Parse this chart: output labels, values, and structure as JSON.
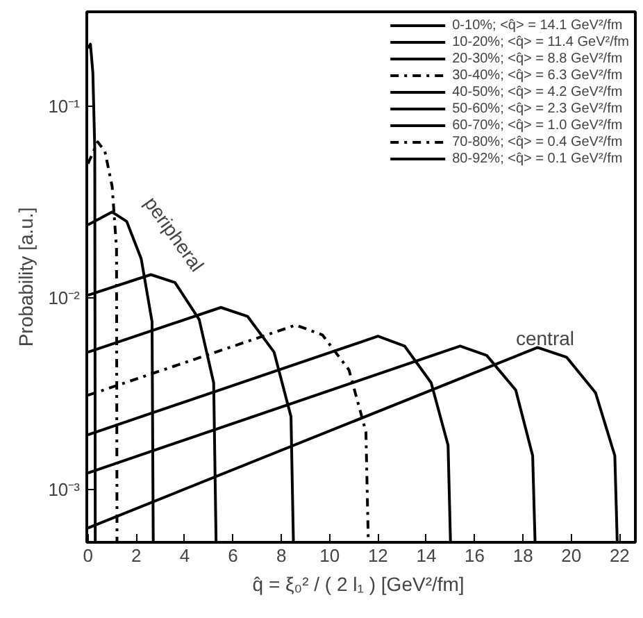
{
  "chart_data": {
    "type": "line",
    "xlabel": "q̂ = ξ₀² / ( 2 l₁ )  [GeV²/fm]",
    "ylabel": "Probability [a.u.]",
    "log": "y",
    "xlim": [
      -0.05,
      22.65
    ],
    "ylim": [
      0.00053,
      0.31
    ],
    "xticks": [
      0,
      2,
      4,
      6,
      8,
      10,
      12,
      14,
      16,
      18,
      20,
      22
    ],
    "yticks": [
      {
        "value": 0.001,
        "label": "10⁻³"
      },
      {
        "value": 0.01,
        "label": "10⁻²"
      },
      {
        "value": 0.1,
        "label": "10⁻¹"
      }
    ],
    "grid": false,
    "legend": "top right",
    "marker": "none",
    "series": [
      {
        "name": "0-10%; <q̂> = 14.1 GeV²/fm",
        "color": "#000000",
        "line_style": "solid",
        "x": [
          0,
          18.6,
          19.8,
          21.0,
          21.8,
          21.9
        ],
        "values": [
          0.00063,
          0.0055,
          0.0049,
          0.0032,
          0.0015,
          0.00053
        ]
      },
      {
        "name": "10-20%; <q̂> = 11.4 GeV²/fm",
        "color": "#000000",
        "line_style": "solid",
        "x": [
          0,
          15.4,
          16.5,
          17.7,
          18.4,
          18.5
        ],
        "values": [
          0.00122,
          0.0056,
          0.005,
          0.0033,
          0.0015,
          0.00053
        ]
      },
      {
        "name": "20-30%; <q̂> = 8.8 GeV²/fm",
        "color": "#000000",
        "line_style": "solid",
        "x": [
          0,
          12.0,
          13.1,
          14.2,
          14.9,
          15.0
        ],
        "values": [
          0.00193,
          0.0063,
          0.0056,
          0.0036,
          0.0017,
          0.00053
        ]
      },
      {
        "name": "30-40%; <q̂> = 6.3 GeV²/fm",
        "color": "#000000",
        "line_style": "dashed",
        "x": [
          0,
          8.6,
          9.7,
          10.8,
          11.5,
          11.6
        ],
        "values": [
          0.0031,
          0.0072,
          0.0064,
          0.0042,
          0.002,
          0.00053
        ]
      },
      {
        "name": "40-50%; <q̂> = 4.2 GeV²/fm",
        "color": "#000000",
        "line_style": "solid",
        "x": [
          0,
          5.5,
          6.6,
          7.7,
          8.4,
          8.5
        ],
        "values": [
          0.0052,
          0.0089,
          0.008,
          0.0052,
          0.0024,
          0.00053
        ]
      },
      {
        "name": "50-60%; <q̂> = 2.3 GeV²/fm",
        "color": "#000000",
        "line_style": "solid",
        "x": [
          0,
          2.6,
          3.6,
          4.6,
          5.2,
          5.3
        ],
        "values": [
          0.0103,
          0.0132,
          0.012,
          0.0077,
          0.0036,
          0.00053
        ]
      },
      {
        "name": "60-70%; <q̂> = 1.0 GeV²/fm",
        "color": "#000000",
        "line_style": "solid",
        "x": [
          0,
          1.0,
          1.6,
          2.2,
          2.65,
          2.7
        ],
        "values": [
          0.024,
          0.028,
          0.025,
          0.016,
          0.0075,
          0.00053
        ]
      },
      {
        "name": "70-80%; <q̂> = 0.4 GeV²/fm",
        "color": "#000000",
        "line_style": "dashed",
        "x": [
          0,
          0.4,
          0.7,
          1.0,
          1.18,
          1.2
        ],
        "values": [
          0.05,
          0.065,
          0.058,
          0.038,
          0.018,
          0.00053
        ]
      },
      {
        "name": "80-92%; <q̂> = 0.1 GeV²/fm",
        "color": "#000000",
        "line_style": "solid",
        "x": [
          0,
          0.1,
          0.2,
          0.28,
          0.3
        ],
        "values": [
          0.2,
          0.21,
          0.15,
          0.06,
          0.00053
        ]
      }
    ],
    "annotations": [
      "peripheral",
      "central"
    ]
  }
}
